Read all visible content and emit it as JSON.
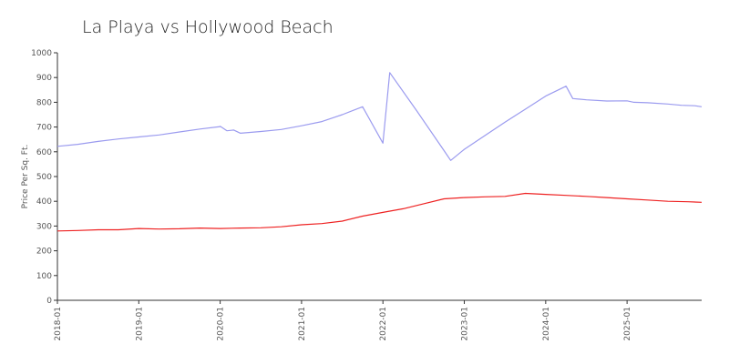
{
  "chart_data": {
    "type": "line",
    "title": "La Playa vs Hollywood Beach",
    "xlabel": "",
    "ylabel": "Price Per Sq. Ft.",
    "ylim": [
      0,
      1000
    ],
    "xlim": [
      "2018-01",
      "2025-12"
    ],
    "y_ticks": [
      0,
      100,
      200,
      300,
      400,
      500,
      600,
      700,
      800,
      900,
      1000
    ],
    "x_ticks": [
      "2018-01",
      "2019-01",
      "2020-01",
      "2021-01",
      "2022-01",
      "2023-01",
      "2024-01",
      "2025-01"
    ],
    "grid": false,
    "legend": "none",
    "series": [
      {
        "color": "#9b9bef",
        "points": [
          [
            "2018-01",
            622
          ],
          [
            "2018-04",
            630
          ],
          [
            "2018-07",
            642
          ],
          [
            "2018-10",
            652
          ],
          [
            "2019-01",
            660
          ],
          [
            "2019-04",
            668
          ],
          [
            "2019-07",
            680
          ],
          [
            "2019-10",
            692
          ],
          [
            "2020-01",
            702
          ],
          [
            "2020-01",
            703
          ],
          [
            "2020-02",
            685
          ],
          [
            "2020-03",
            688
          ],
          [
            "2020-04",
            675
          ],
          [
            "2020-07",
            682
          ],
          [
            "2020-10",
            690
          ],
          [
            "2021-01",
            705
          ],
          [
            "2021-04",
            722
          ],
          [
            "2021-07",
            750
          ],
          [
            "2021-10",
            782
          ],
          [
            "2022-01",
            635
          ],
          [
            "2022-02",
            920
          ],
          [
            "2022-06",
            765
          ],
          [
            "2022-10",
            605
          ],
          [
            "2022-11",
            565
          ],
          [
            "2023-01",
            610
          ],
          [
            "2023-04",
            665
          ],
          [
            "2023-07",
            720
          ],
          [
            "2023-10",
            772
          ],
          [
            "2024-01",
            825
          ],
          [
            "2024-04",
            865
          ],
          [
            "2024-05",
            815
          ],
          [
            "2024-07",
            810
          ],
          [
            "2024-10",
            805
          ],
          [
            "2025-01",
            806
          ],
          [
            "2025-02",
            800
          ],
          [
            "2025-04",
            798
          ],
          [
            "2025-07",
            793
          ],
          [
            "2025-09",
            788
          ],
          [
            "2025-11",
            786
          ],
          [
            "2025-12",
            782
          ]
        ]
      },
      {
        "color": "#ee2222",
        "points": [
          [
            "2018-01",
            280
          ],
          [
            "2018-04",
            282
          ],
          [
            "2018-07",
            285
          ],
          [
            "2018-10",
            285
          ],
          [
            "2019-01",
            290
          ],
          [
            "2019-04",
            288
          ],
          [
            "2019-07",
            289
          ],
          [
            "2019-10",
            292
          ],
          [
            "2020-01",
            290
          ],
          [
            "2020-04",
            292
          ],
          [
            "2020-07",
            293
          ],
          [
            "2020-10",
            297
          ],
          [
            "2021-01",
            305
          ],
          [
            "2021-04",
            310
          ],
          [
            "2021-07",
            320
          ],
          [
            "2021-10",
            340
          ],
          [
            "2022-01",
            355
          ],
          [
            "2022-04",
            370
          ],
          [
            "2022-07",
            390
          ],
          [
            "2022-10",
            410
          ],
          [
            "2023-01",
            415
          ],
          [
            "2023-04",
            418
          ],
          [
            "2023-07",
            420
          ],
          [
            "2023-10",
            432
          ],
          [
            "2024-01",
            428
          ],
          [
            "2024-04",
            424
          ],
          [
            "2024-07",
            420
          ],
          [
            "2024-10",
            415
          ],
          [
            "2025-01",
            410
          ],
          [
            "2025-04",
            405
          ],
          [
            "2025-07",
            400
          ],
          [
            "2025-10",
            398
          ],
          [
            "2025-12",
            396
          ]
        ]
      }
    ]
  }
}
